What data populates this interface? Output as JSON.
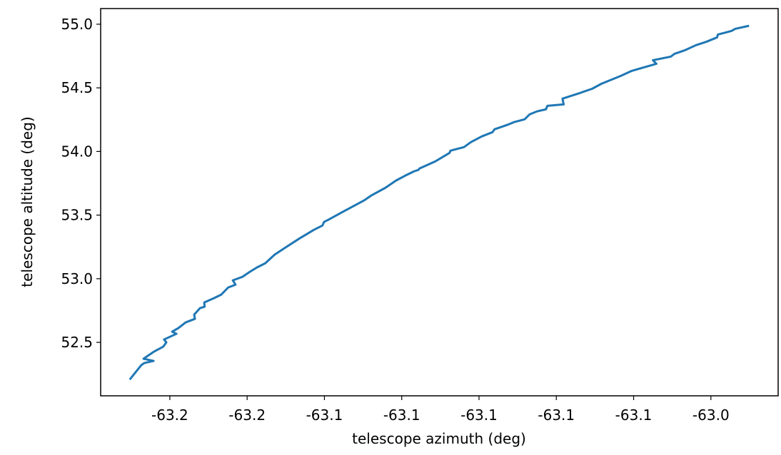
{
  "chart_data": {
    "type": "line",
    "xlabel": "telescope azimuth (deg)",
    "ylabel": "telescope altitude (deg)",
    "color": "#1f77b4",
    "xlim": [
      -63.1979,
      -63.0226
    ],
    "ylim": [
      52.08,
      55.123
    ],
    "xticks": [
      {
        "value": -63.18,
        "label": "-63.2"
      },
      {
        "value": -63.16,
        "label": "-63.2"
      },
      {
        "value": -63.14,
        "label": "-63.1"
      },
      {
        "value": -63.12,
        "label": "-63.1"
      },
      {
        "value": -63.1,
        "label": "-63.1"
      },
      {
        "value": -63.08,
        "label": "-63.1"
      },
      {
        "value": -63.06,
        "label": "-63.1"
      },
      {
        "value": -63.04,
        "label": "-63.0"
      }
    ],
    "yticks": [
      {
        "value": 52.5,
        "label": "52.5"
      },
      {
        "value": 53,
        "label": "53.0"
      },
      {
        "value": 53.5,
        "label": "53.5"
      },
      {
        "value": 54,
        "label": "54.0"
      },
      {
        "value": 54.5,
        "label": "54.5"
      },
      {
        "value": 55,
        "label": "55.0"
      }
    ],
    "x": [
      -63.1902,
      -63.1874,
      -63.1866,
      -63.1842,
      -63.1868,
      -63.1841,
      -63.1817,
      -63.1809,
      -63.1815,
      -63.1783,
      -63.1794,
      -63.1778,
      -63.1759,
      -63.1735,
      -63.1737,
      -63.1722,
      -63.171,
      -63.1711,
      -63.1686,
      -63.1667,
      -63.1649,
      -63.163,
      -63.1637,
      -63.1612,
      -63.1593,
      -63.1575,
      -63.1553,
      -63.1529,
      -63.1501,
      -63.1464,
      -63.1427,
      -63.1405,
      -63.1401,
      -63.139,
      -63.1353,
      -63.1298,
      -63.1279,
      -63.1242,
      -63.1215,
      -63.1191,
      -63.1168,
      -63.1157,
      -63.1154,
      -63.1113,
      -63.1076,
      -63.1074,
      -63.1039,
      -63.1021,
      -63.0993,
      -63.0965,
      -63.096,
      -63.0928,
      -63.091,
      -63.0882,
      -63.0869,
      -63.0851,
      -63.0827,
      -63.0823,
      -63.0781,
      -63.0784,
      -63.0744,
      -63.0707,
      -63.0683,
      -63.0633,
      -63.0605,
      -63.0541,
      -63.055,
      -63.0504,
      -63.0494,
      -63.0467,
      -63.0439,
      -63.0411,
      -63.0384,
      -63.0382,
      -63.0347,
      -63.0337,
      -63.0304
    ],
    "values": [
      52.2144,
      52.3208,
      52.3376,
      52.3544,
      52.3712,
      52.4272,
      52.4664,
      52.5,
      52.5224,
      52.5672,
      52.584,
      52.612,
      52.6568,
      52.6848,
      52.7184,
      52.7688,
      52.78,
      52.8136,
      52.8471,
      52.8751,
      52.9311,
      52.9535,
      52.9871,
      53.0151,
      53.0543,
      53.0879,
      53.1215,
      53.1887,
      53.2447,
      53.3175,
      53.3847,
      53.4183,
      53.4462,
      53.463,
      53.5246,
      53.6142,
      53.6534,
      53.715,
      53.771,
      53.8102,
      53.8438,
      53.855,
      53.8662,
      53.9222,
      53.9894,
      54.0062,
      54.0342,
      54.0733,
      54.1181,
      54.1517,
      54.1741,
      54.2077,
      54.2301,
      54.2525,
      54.2917,
      54.3141,
      54.3309,
      54.3589,
      54.3701,
      54.4149,
      54.4541,
      54.4933,
      54.5325,
      54.5941,
      54.6333,
      54.6893,
      54.7172,
      54.7452,
      54.7676,
      54.7956,
      54.8348,
      54.8628,
      54.8964,
      54.9188,
      54.9468,
      54.9636,
      54.986
    ]
  }
}
